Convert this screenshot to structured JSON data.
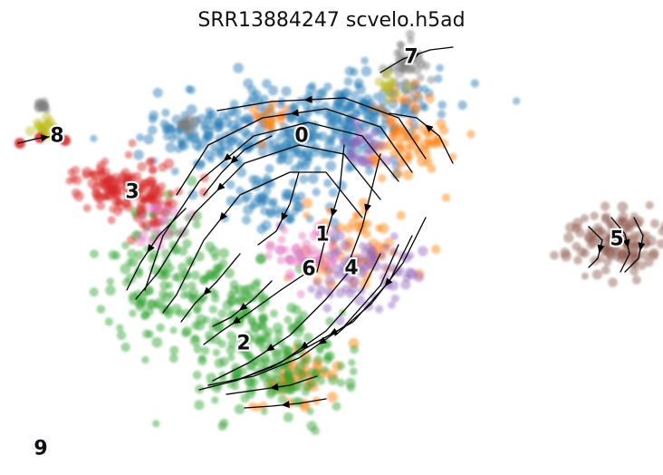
{
  "chart_data": {
    "type": "scatter",
    "title": "SRR13884247 scvelo.h5ad",
    "xlabel": "",
    "ylabel": "",
    "axes_visible": false,
    "grid": false,
    "legend": "on data",
    "overlay": "velocity streamlines with arrowheads",
    "clusters": [
      {
        "label": "0",
        "color": "#1f77b4"
      },
      {
        "label": "1",
        "color": "#ff7f0e"
      },
      {
        "label": "2",
        "color": "#2ca02c"
      },
      {
        "label": "3",
        "color": "#d62728"
      },
      {
        "label": "4",
        "color": "#9467bd"
      },
      {
        "label": "5",
        "color": "#8c564b"
      },
      {
        "label": "6",
        "color": "#e377c2"
      },
      {
        "label": "7",
        "color": "#7f7f7f"
      },
      {
        "label": "8",
        "color": "#bcbd22"
      },
      {
        "label": "9",
        "color": "#17becf"
      }
    ]
  }
}
